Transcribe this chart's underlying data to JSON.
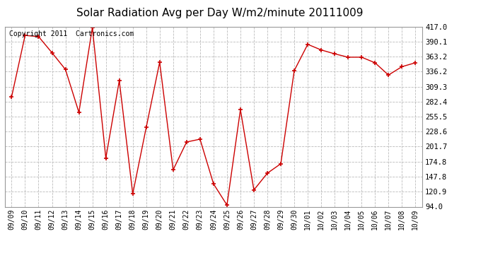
{
  "title": "Solar Radiation Avg per Day W/m2/minute 20111009",
  "copyright": "Copyright 2011  Cartronics.com",
  "x_labels": [
    "09/09",
    "09/10",
    "09/11",
    "09/12",
    "09/13",
    "09/14",
    "09/15",
    "09/16",
    "09/17",
    "09/18",
    "09/19",
    "09/20",
    "09/21",
    "09/22",
    "09/23",
    "09/24",
    "09/25",
    "09/26",
    "09/27",
    "09/28",
    "09/29",
    "09/30",
    "10/01",
    "10/02",
    "10/03",
    "10/04",
    "10/05",
    "10/06",
    "10/07",
    "10/08",
    "10/09"
  ],
  "y_values": [
    291.0,
    401.0,
    399.0,
    370.0,
    340.0,
    263.0,
    415.0,
    181.0,
    320.0,
    117.0,
    236.0,
    353.0,
    160.0,
    210.0,
    215.0,
    135.0,
    97.0,
    268.0,
    124.0,
    154.0,
    171.0,
    338.0,
    385.0,
    375.0,
    368.0,
    362.0,
    362.0,
    352.0,
    330.0,
    345.0,
    352.0
  ],
  "y_ticks": [
    94.0,
    120.9,
    147.8,
    174.8,
    201.7,
    228.6,
    255.5,
    282.4,
    309.3,
    336.2,
    363.2,
    390.1,
    417.0
  ],
  "y_min": 94.0,
  "y_max": 417.0,
  "line_color": "#cc0000",
  "marker_color": "#cc0000",
  "bg_color": "#ffffff",
  "grid_color": "#bbbbbb",
  "title_fontsize": 11,
  "copyright_fontsize": 7,
  "tick_fontsize": 7,
  "ytick_fontsize": 7.5
}
